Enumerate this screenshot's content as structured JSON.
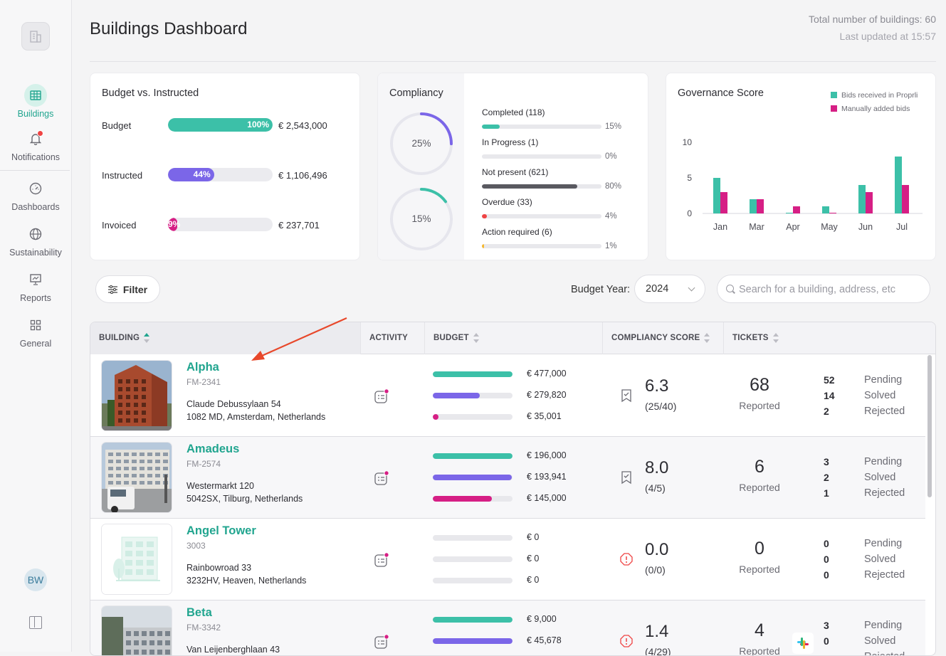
{
  "sidebar": {
    "items": [
      {
        "label": "Buildings",
        "icon": "grid-table-icon"
      },
      {
        "label": "Notifications",
        "icon": "bell-icon"
      },
      {
        "label": "Dashboards",
        "icon": "gauge-icon"
      },
      {
        "label": "Sustainability",
        "icon": "globe-icon"
      },
      {
        "label": "Reports",
        "icon": "presentation-chart-icon"
      },
      {
        "label": "General",
        "icon": "apps-grid-icon"
      }
    ],
    "avatar_initials": "BW"
  },
  "header": {
    "title": "Buildings Dashboard",
    "total_buildings": "Total number of buildings: 60",
    "last_updated": "Last updated at 15:57"
  },
  "budget_card": {
    "title": "Budget vs. Instructed",
    "rows": [
      {
        "label": "Budget",
        "percent_text": "100%",
        "fraction": 1.0,
        "value": "€ 2,543,000",
        "color": "#3cc0a8"
      },
      {
        "label": "Instructed",
        "percent_text": "44%",
        "fraction": 0.44,
        "value": "€ 1,106,496",
        "color": "#7b66e8"
      },
      {
        "label": "Invoiced",
        "percent_text": "9%",
        "fraction": 0.09,
        "value": "€ 237,701",
        "color": "#d61f85"
      }
    ]
  },
  "compliancy_card": {
    "title": "Compliancy",
    "rings": [
      {
        "text": "25%",
        "fraction": 0.25,
        "color": "#7b66e8"
      },
      {
        "text": "15%",
        "fraction": 0.15,
        "color": "#3cc0a8"
      }
    ],
    "items": [
      {
        "label": "Completed (118)",
        "percent": "15%",
        "fraction": 0.15,
        "color": "#3cc0a8"
      },
      {
        "label": "In Progress (1)",
        "percent": "0%",
        "fraction": 0.0,
        "color": "#7b66e8"
      },
      {
        "label": "Not present (621)",
        "percent": "80%",
        "fraction": 0.8,
        "color": "#595960"
      },
      {
        "label": "Overdue (33)",
        "percent": "4%",
        "fraction": 0.04,
        "color": "#ef4444"
      },
      {
        "label": "Action required (6)",
        "percent": "1%",
        "fraction": 0.01,
        "color": "#f5b82e"
      }
    ]
  },
  "governance_card": {
    "title": "Governance Score",
    "legend": [
      {
        "name": "Bids received in Proprli",
        "color": "#3cc0a8"
      },
      {
        "name": "Manually added bids",
        "color": "#d61f85"
      }
    ]
  },
  "chart_data": {
    "type": "bar",
    "title": "Governance Score",
    "categories": [
      "Jan",
      "Mar",
      "Apr",
      "May",
      "Jun",
      "Jul"
    ],
    "series": [
      {
        "name": "Bids received in Proprli",
        "values": [
          5,
          2,
          0,
          1,
          4,
          8
        ],
        "color": "#3cc0a8"
      },
      {
        "name": "Manually added bids",
        "values": [
          3,
          2,
          1,
          0,
          3,
          4
        ],
        "color": "#d61f85"
      }
    ],
    "ylim": [
      0,
      10
    ],
    "yticks": [
      "0",
      "5",
      "10"
    ],
    "xlabel": "",
    "ylabel": "",
    "grid": false,
    "legend_position": "top-right"
  },
  "toolbar": {
    "filter_label": "Filter",
    "budget_year_label": "Budget Year:",
    "budget_year_value": "2024",
    "search_placeholder": "Search for a building, address, etc"
  },
  "table": {
    "columns": [
      "BUILDING",
      "ACTIVITY",
      "BUDGET",
      "COMPLIANCY SCORE",
      "TICKETS"
    ],
    "rows": [
      {
        "name": "Alpha",
        "code": "FM-2341",
        "address1": "Claude Debussylaan 54",
        "address2": "1082 MD, Amsterdam, Netherlands",
        "image": "brick-office-photo",
        "budget": [
          {
            "value": "€ 477,000",
            "fraction": 1.0
          },
          {
            "value": "€ 279,820",
            "fraction": 0.59
          },
          {
            "value": "€ 35,001",
            "fraction": 0.07
          }
        ],
        "score": "6.3",
        "score_sub": "(25/40)",
        "score_icon": "bookmark-check-icon",
        "tickets": "68",
        "tickets_label": "Reported",
        "ticket_counts": [
          "52",
          "14",
          "2"
        ]
      },
      {
        "name": "Amadeus",
        "code": "FM-2574",
        "address1": "Westermarkt 120",
        "address2": "5042SX, Tilburg, Netherlands",
        "image": "apartment-block-photo",
        "budget": [
          {
            "value": "€ 196,000",
            "fraction": 1.0
          },
          {
            "value": "€ 193,941",
            "fraction": 0.99
          },
          {
            "value": "€ 145,000",
            "fraction": 0.74
          }
        ],
        "score": "8.0",
        "score_sub": "(4/5)",
        "score_icon": "bookmark-check-icon",
        "tickets": "6",
        "tickets_label": "Reported",
        "ticket_counts": [
          "3",
          "2",
          "1"
        ]
      },
      {
        "name": "Angel Tower",
        "code": "3003",
        "address1": "Rainbowroad 33",
        "address2": "3232HV, Heaven, Netherlands",
        "image": "building-placeholder",
        "budget": [
          {
            "value": "€ 0",
            "fraction": 0.0
          },
          {
            "value": "€ 0",
            "fraction": 0.0
          },
          {
            "value": "€ 0",
            "fraction": 0.0
          }
        ],
        "score": "0.0",
        "score_sub": "(0/0)",
        "score_icon": "alert-octagon-icon",
        "tickets": "0",
        "tickets_label": "Reported",
        "ticket_counts": [
          "0",
          "0",
          "0"
        ]
      },
      {
        "name": "Beta",
        "code": "FM-3342",
        "address1": "Van Leijenberghlaan 43",
        "address2": "",
        "image": "street-building-photo",
        "budget": [
          {
            "value": "€ 9,000",
            "fraction": 1.0
          },
          {
            "value": "€ 45,678",
            "fraction": 1.0
          },
          {
            "value": "",
            "fraction": 0.0
          }
        ],
        "score": "1.4",
        "score_sub": "(4/29)",
        "score_icon": "alert-octagon-icon",
        "tickets": "4",
        "tickets_label": "Reported",
        "ticket_counts": [
          "3",
          "0",
          ""
        ],
        "integration_icon": "slack-icon"
      }
    ],
    "ticket_labels": [
      "Pending",
      "Solved",
      "Rejected"
    ]
  },
  "colors": {
    "accent": "#21a58f",
    "teal": "#3cc0a8",
    "purple": "#7b66e8",
    "magenta": "#d61f85",
    "alert": "#ef4444"
  }
}
